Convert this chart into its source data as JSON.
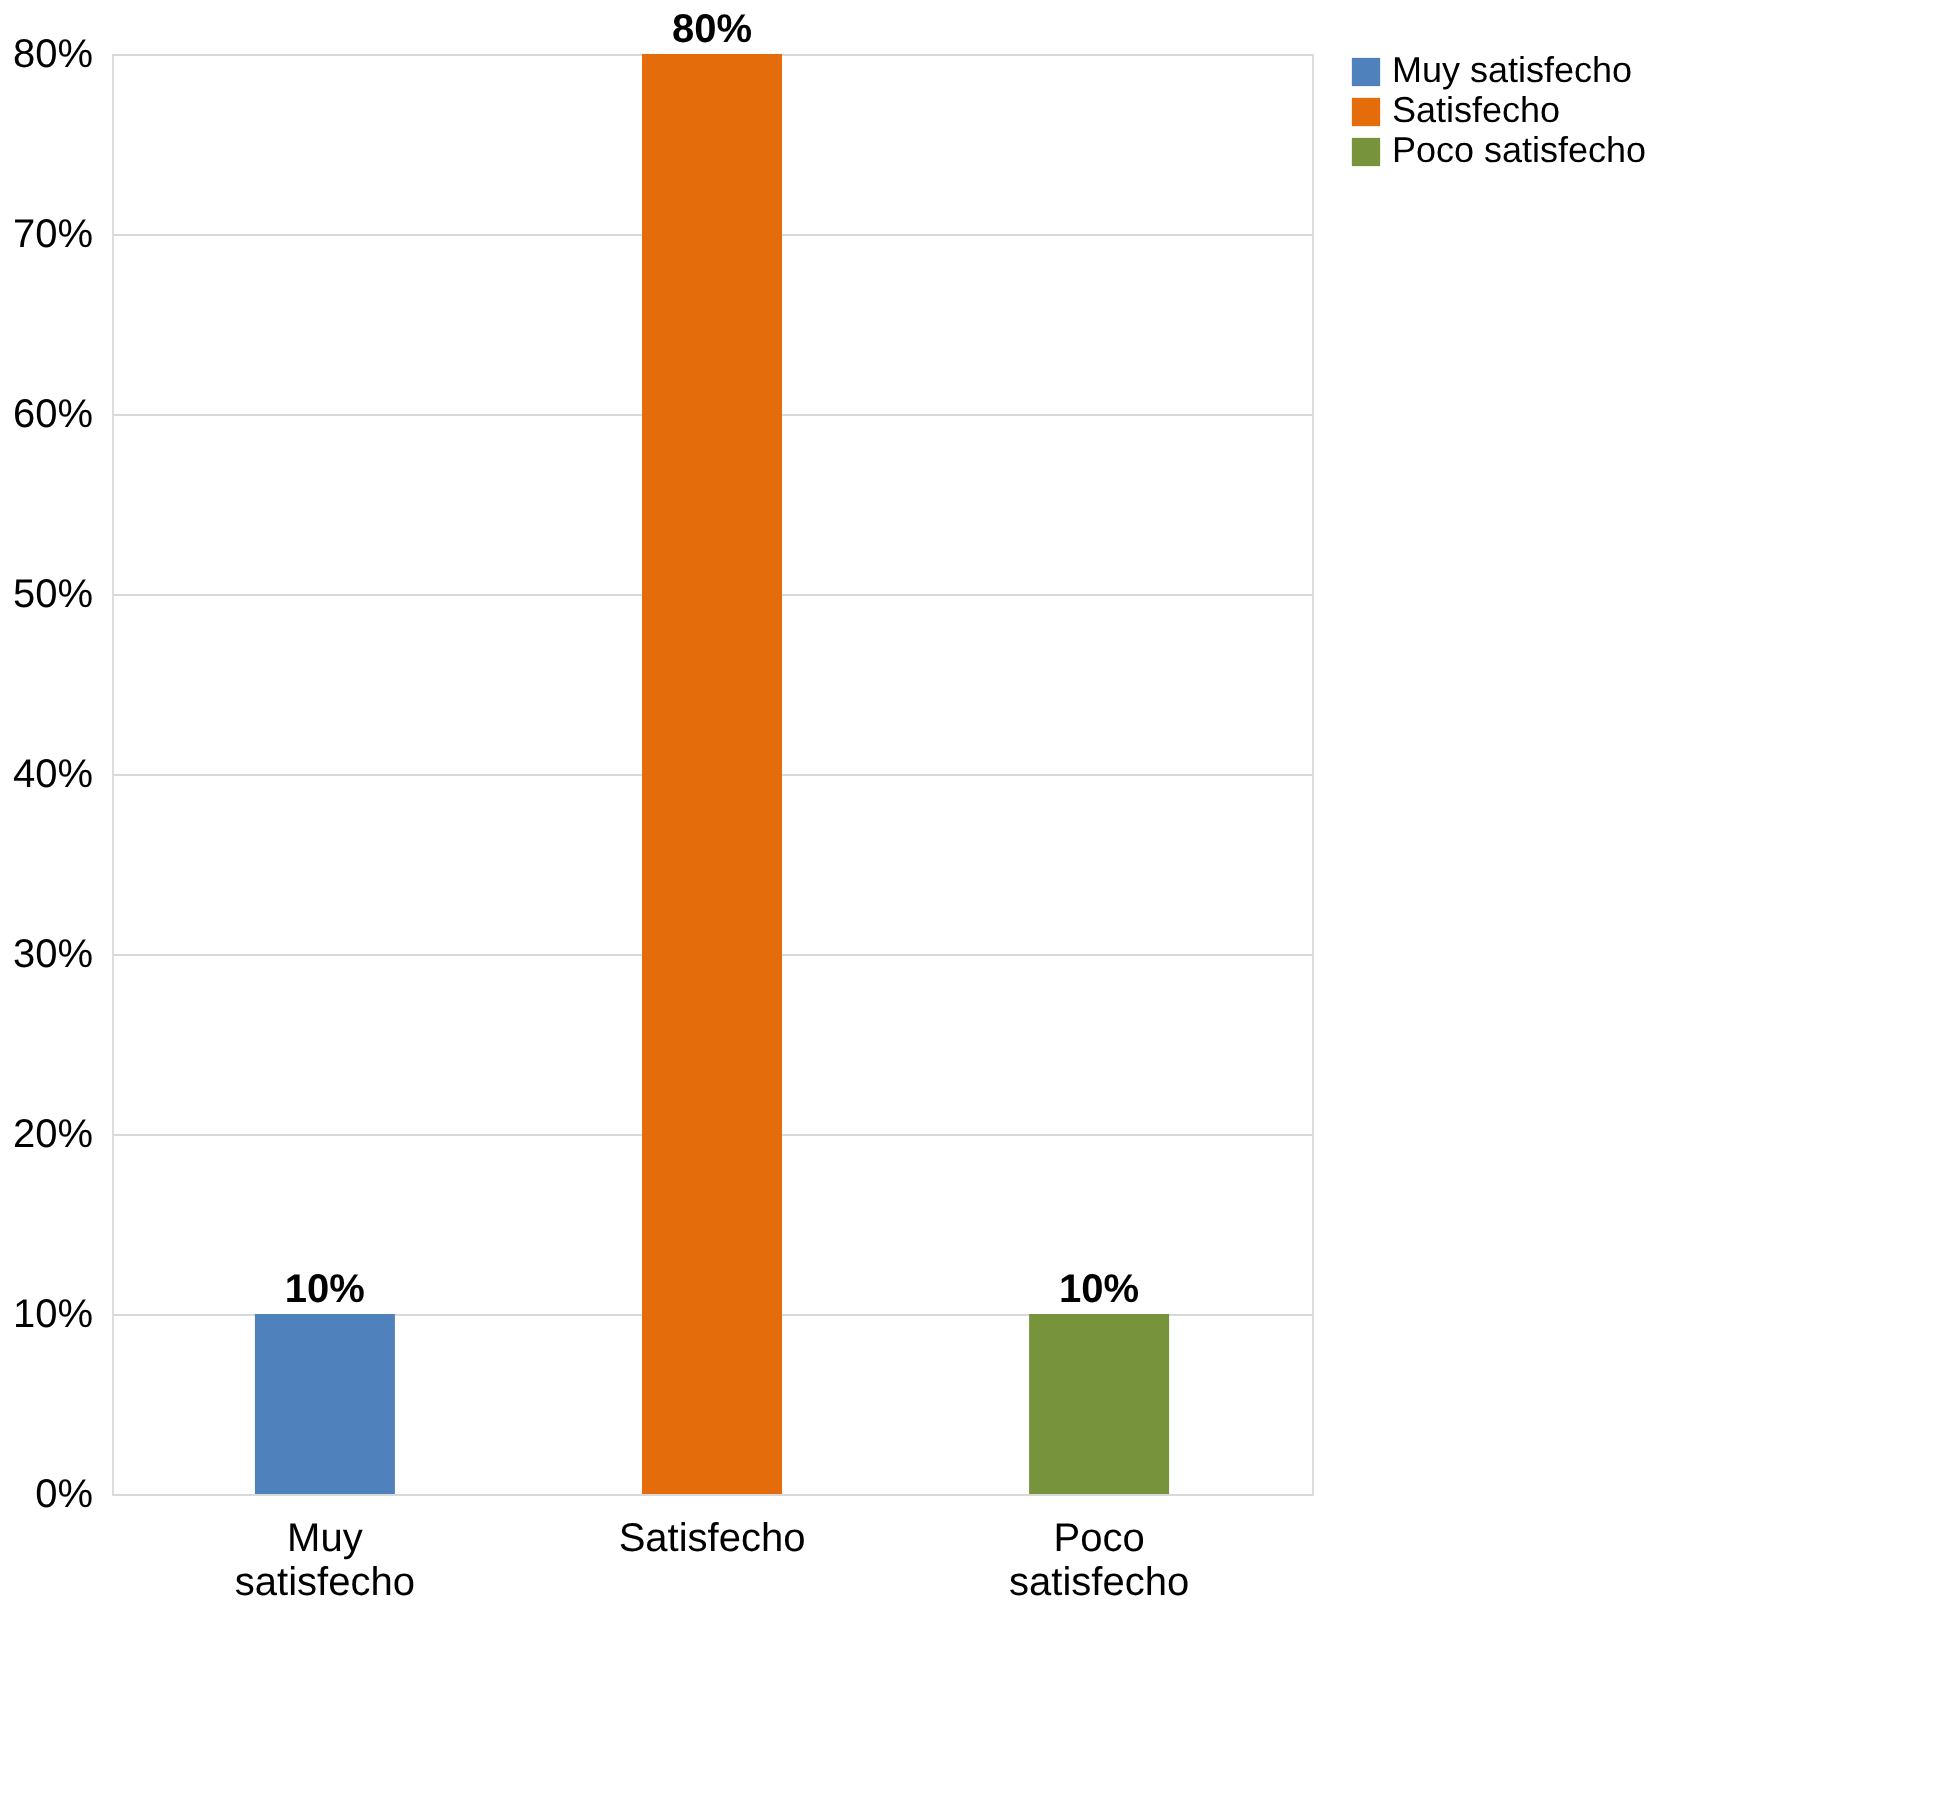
{
  "chart_data": {
    "type": "bar",
    "categories": [
      "Muy satisfecho",
      "Satisfecho",
      "Poco satisfecho"
    ],
    "series": [
      {
        "name": "Muy satisfecho",
        "color": "#4f81bd",
        "values": [
          10,
          null,
          null
        ],
        "value_labels": [
          "10%",
          null,
          null
        ]
      },
      {
        "name": "Satisfecho",
        "color": "#e46c0a",
        "values": [
          null,
          80,
          null
        ],
        "value_labels": [
          null,
          "80%",
          null
        ]
      },
      {
        "name": "Poco satisfecho",
        "color": "#77933c",
        "values": [
          null,
          null,
          10
        ],
        "value_labels": [
          null,
          null,
          "10%"
        ]
      }
    ],
    "ylim": [
      0,
      80
    ],
    "yticks": [
      {
        "value": 0,
        "label": "0%"
      },
      {
        "value": 10,
        "label": "10%"
      },
      {
        "value": 20,
        "label": "20%"
      },
      {
        "value": 30,
        "label": "30%"
      },
      {
        "value": 40,
        "label": "40%"
      },
      {
        "value": 50,
        "label": "50%"
      },
      {
        "value": 60,
        "label": "60%"
      },
      {
        "value": 70,
        "label": "70%"
      },
      {
        "value": 80,
        "label": "80%"
      }
    ],
    "grid": "y",
    "legend": "right"
  }
}
